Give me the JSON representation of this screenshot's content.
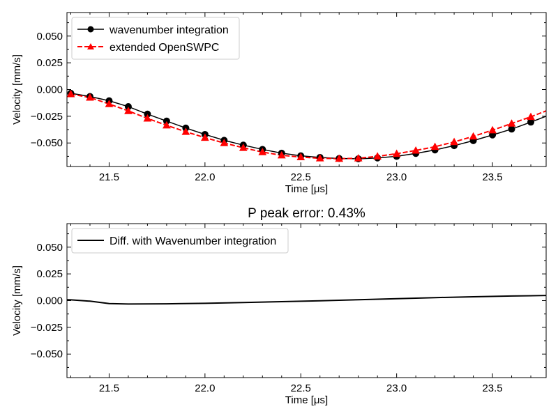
{
  "chart_data": [
    {
      "type": "line",
      "title": "",
      "xlabel": "Time [μs]",
      "ylabel": "Velocity [mm/s]",
      "xlim": [
        21.28,
        23.78
      ],
      "ylim": [
        -0.072,
        0.072
      ],
      "xticks": [
        21.5,
        22.0,
        22.5,
        23.0,
        23.5
      ],
      "xtick_labels": [
        "21.5",
        "22.0",
        "22.5",
        "23.0",
        "23.5"
      ],
      "yticks": [
        0.05,
        0.025,
        0.0,
        -0.025,
        -0.05
      ],
      "ytick_labels": [
        "0.050",
        "0.025",
        "0.000",
        "−0.025",
        "−0.050"
      ],
      "legend_position": "top-left",
      "series": [
        {
          "name": "wavenumber integration",
          "color": "#000000",
          "marker": "circle",
          "linestyle": "solid",
          "x": [
            21.3,
            21.4,
            21.5,
            21.6,
            21.7,
            21.8,
            21.9,
            22.0,
            22.1,
            22.2,
            22.3,
            22.4,
            22.5,
            22.6,
            22.7,
            22.8,
            22.9,
            23.0,
            23.1,
            23.2,
            23.3,
            23.4,
            23.5,
            23.6,
            23.7,
            23.78
          ],
          "y": [
            -0.0035,
            -0.0065,
            -0.0105,
            -0.016,
            -0.023,
            -0.0295,
            -0.036,
            -0.042,
            -0.0475,
            -0.052,
            -0.056,
            -0.0595,
            -0.062,
            -0.0635,
            -0.0645,
            -0.0648,
            -0.064,
            -0.0625,
            -0.0598,
            -0.0565,
            -0.0525,
            -0.0478,
            -0.0425,
            -0.037,
            -0.0305,
            -0.025
          ],
          "marker_points": 25
        },
        {
          "name": "extended OpenSWPC",
          "color": "#ff0000",
          "marker": "triangle",
          "linestyle": "dashed",
          "x": [
            21.3,
            21.4,
            21.5,
            21.6,
            21.7,
            21.8,
            21.9,
            22.0,
            22.1,
            22.2,
            22.3,
            22.4,
            22.5,
            22.6,
            22.7,
            22.8,
            22.9,
            23.0,
            23.1,
            23.2,
            23.3,
            23.4,
            23.5,
            23.6,
            23.7,
            23.78
          ],
          "y": [
            -0.0042,
            -0.0075,
            -0.0135,
            -0.02,
            -0.027,
            -0.0335,
            -0.0395,
            -0.045,
            -0.05,
            -0.0545,
            -0.0585,
            -0.0615,
            -0.0632,
            -0.0643,
            -0.0647,
            -0.0643,
            -0.0625,
            -0.06,
            -0.057,
            -0.0535,
            -0.049,
            -0.0438,
            -0.038,
            -0.0318,
            -0.0255,
            -0.02
          ],
          "marker_points": 25
        }
      ]
    },
    {
      "type": "line",
      "title": "P peak error: 0.43%",
      "xlabel": "Time [μs]",
      "ylabel": "Velocity [mm/s]",
      "xlim": [
        21.28,
        23.78
      ],
      "ylim": [
        -0.072,
        0.072
      ],
      "xticks": [
        21.5,
        22.0,
        22.5,
        23.0,
        23.5
      ],
      "xtick_labels": [
        "21.5",
        "22.0",
        "22.5",
        "23.0",
        "23.5"
      ],
      "yticks": [
        0.05,
        0.025,
        0.0,
        -0.025,
        -0.05
      ],
      "ytick_labels": [
        "0.050",
        "0.025",
        "0.000",
        "−0.025",
        "−0.050"
      ],
      "legend_position": "top-left",
      "series": [
        {
          "name": "Diff. with Wavenumber integration",
          "color": "#000000",
          "marker": "none",
          "linestyle": "solid",
          "x": [
            21.28,
            21.3,
            21.4,
            21.5,
            21.6,
            21.8,
            22.0,
            22.2,
            22.4,
            22.6,
            22.8,
            23.0,
            23.2,
            23.4,
            23.6,
            23.78
          ],
          "y": [
            0.0008,
            0.0007,
            -0.0005,
            -0.0028,
            -0.0032,
            -0.003,
            -0.0025,
            -0.0018,
            -0.001,
            -0.0002,
            0.0008,
            0.0018,
            0.0028,
            0.0036,
            0.0043,
            0.0048
          ]
        }
      ]
    }
  ]
}
